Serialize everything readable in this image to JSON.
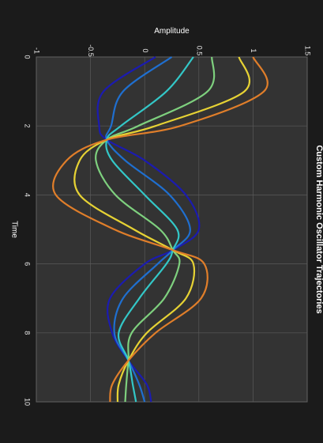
{
  "chart_data": {
    "type": "line",
    "title": "Custom Harmonic Oscillator Trajectories",
    "xlabel": "Time",
    "ylabel": "Amplitude",
    "xlim": [
      0,
      10
    ],
    "ylim": [
      -1,
      1.5
    ],
    "x_ticks": [
      0,
      2,
      4,
      6,
      8,
      10
    ],
    "y_ticks": [
      -1,
      -0.5,
      0,
      0.5,
      1,
      1.5
    ],
    "x_tick_labels": [
      "0",
      "2",
      "4",
      "6",
      "8",
      "10"
    ],
    "y_tick_labels": [
      "-1",
      "-0.5",
      "0",
      "0.5",
      "1",
      "1.5"
    ],
    "orientation": "rotated-90-clockwise",
    "grid": true,
    "colors": {
      "background": "#1b1b1b",
      "plot_background": "#333333",
      "grid": "#5a5a5a",
      "text": "#ffffff"
    },
    "series": [
      {
        "color": "#1b1bb0",
        "x": [
          0,
          1,
          2,
          2.4,
          3,
          4,
          5,
          5.6,
          6,
          7,
          8,
          8.8,
          9.5,
          10
        ],
        "values": [
          0.1,
          -0.38,
          -0.42,
          -0.35,
          0.0,
          0.38,
          0.5,
          0.26,
          0.0,
          -0.32,
          -0.3,
          -0.15,
          0.02,
          0.06
        ]
      },
      {
        "color": "#1f6fd0",
        "x": [
          0,
          1,
          2,
          2.4,
          3,
          4,
          5,
          5.6,
          6,
          7,
          8,
          8.8,
          9.5,
          10
        ],
        "values": [
          0.25,
          -0.2,
          -0.31,
          -0.35,
          -0.18,
          0.23,
          0.42,
          0.26,
          0.12,
          -0.2,
          -0.28,
          -0.15,
          -0.05,
          0.0
        ]
      },
      {
        "color": "#33c7c7",
        "x": [
          0,
          1,
          2,
          2.4,
          3,
          4,
          5,
          5.6,
          6,
          7,
          8,
          8.8,
          9.5,
          10
        ],
        "values": [
          0.45,
          0.2,
          -0.22,
          -0.35,
          -0.3,
          0.0,
          0.3,
          0.26,
          0.2,
          -0.05,
          -0.24,
          -0.15,
          -0.11,
          -0.08
        ]
      },
      {
        "color": "#7ed07e",
        "x": [
          0,
          1,
          2,
          2.4,
          3,
          4,
          5,
          5.6,
          6,
          7,
          8,
          8.8,
          9.5,
          10
        ],
        "values": [
          0.62,
          0.58,
          -0.06,
          -0.35,
          -0.45,
          -0.27,
          0.14,
          0.26,
          0.32,
          0.18,
          -0.12,
          -0.15,
          -0.17,
          -0.18
        ]
      },
      {
        "color": "#e6d234",
        "x": [
          0,
          1,
          2,
          2.4,
          3,
          4,
          5,
          5.6,
          6,
          7,
          8,
          8.8,
          9.5,
          10
        ],
        "values": [
          0.87,
          0.92,
          0.1,
          -0.35,
          -0.6,
          -0.6,
          -0.1,
          0.26,
          0.45,
          0.38,
          0.02,
          -0.15,
          -0.24,
          -0.25
        ]
      },
      {
        "color": "#e07e2a",
        "x": [
          0,
          1,
          2,
          2.4,
          3,
          4,
          5,
          5.6,
          6,
          7,
          8,
          8.8,
          9.5,
          10
        ],
        "values": [
          1.0,
          1.1,
          0.33,
          -0.35,
          -0.72,
          -0.82,
          -0.28,
          0.26,
          0.55,
          0.52,
          0.1,
          -0.15,
          -0.3,
          -0.32
        ]
      }
    ]
  }
}
